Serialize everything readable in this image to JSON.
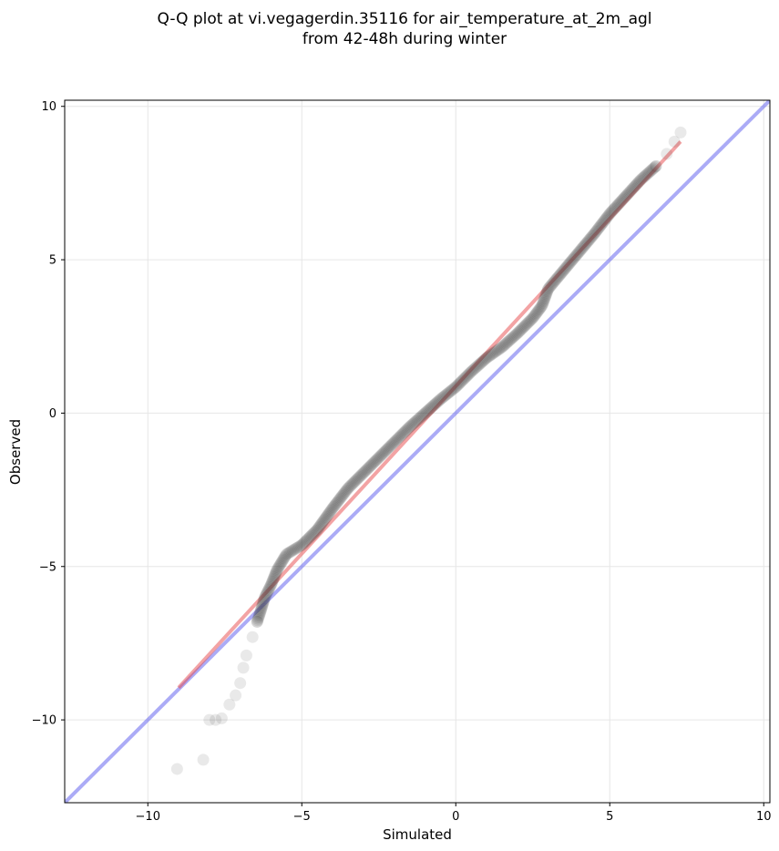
{
  "chart_data": {
    "type": "scatter",
    "title_lines": [
      "Q-Q plot at vi.vegagerdin.35116 for air_temperature_at_2m_agl",
      "from 42-48h during winter"
    ],
    "xlabel": "Simulated",
    "ylabel": "Observed",
    "xlim": [
      -12.7,
      10.2
    ],
    "ylim": [
      -12.7,
      10.2
    ],
    "xticks": [
      -10,
      -5,
      0,
      5,
      10
    ],
    "yticks": [
      -10,
      -5,
      0,
      5,
      10
    ],
    "xtick_labels": [
      "−10",
      "−5",
      "0",
      "5",
      "10"
    ],
    "ytick_labels": [
      "−10",
      "−5",
      "0",
      "5",
      "10"
    ],
    "grid": true,
    "colors": {
      "points": "#333333",
      "fit_line": "#e8474a",
      "identity_line": "#6666ee"
    },
    "fit_line": {
      "x": [
        -9.0,
        7.3
      ],
      "y": [
        -8.95,
        8.85
      ]
    },
    "identity_line": {
      "x": [
        -12.7,
        10.2
      ],
      "y": [
        -12.7,
        10.2
      ]
    },
    "curve_knots": [
      [
        -9.05,
        -11.6
      ],
      [
        -8.2,
        -11.3
      ],
      [
        -8.0,
        -10.0
      ],
      [
        -7.8,
        -10.0
      ],
      [
        -7.6,
        -9.95
      ],
      [
        -7.35,
        -9.5
      ],
      [
        -7.15,
        -9.2
      ],
      [
        -7.0,
        -8.8
      ],
      [
        -6.9,
        -8.3
      ],
      [
        -6.8,
        -7.9
      ],
      [
        -6.6,
        -7.3
      ],
      [
        -6.45,
        -6.8
      ],
      [
        -6.35,
        -6.5
      ],
      [
        -6.2,
        -6.0
      ],
      [
        -6.0,
        -5.6
      ],
      [
        -5.8,
        -5.1
      ],
      [
        -5.5,
        -4.6
      ],
      [
        -5.0,
        -4.3
      ],
      [
        -4.5,
        -3.8
      ],
      [
        -4.0,
        -3.1
      ],
      [
        -3.5,
        -2.45
      ],
      [
        -3.0,
        -1.95
      ],
      [
        -2.5,
        -1.45
      ],
      [
        -2.0,
        -0.95
      ],
      [
        -1.5,
        -0.45
      ],
      [
        -1.0,
        0.0
      ],
      [
        -0.5,
        0.45
      ],
      [
        0.0,
        0.85
      ],
      [
        0.5,
        1.35
      ],
      [
        1.0,
        1.8
      ],
      [
        1.5,
        2.15
      ],
      [
        2.0,
        2.6
      ],
      [
        2.5,
        3.1
      ],
      [
        2.8,
        3.5
      ],
      [
        3.0,
        4.05
      ],
      [
        3.5,
        4.65
      ],
      [
        4.0,
        5.25
      ],
      [
        4.5,
        5.85
      ],
      [
        5.0,
        6.5
      ],
      [
        5.5,
        7.05
      ],
      [
        6.0,
        7.6
      ],
      [
        6.5,
        8.05
      ],
      [
        6.85,
        8.45
      ],
      [
        7.1,
        8.85
      ],
      [
        7.3,
        9.15
      ]
    ],
    "n_points": 400
  }
}
